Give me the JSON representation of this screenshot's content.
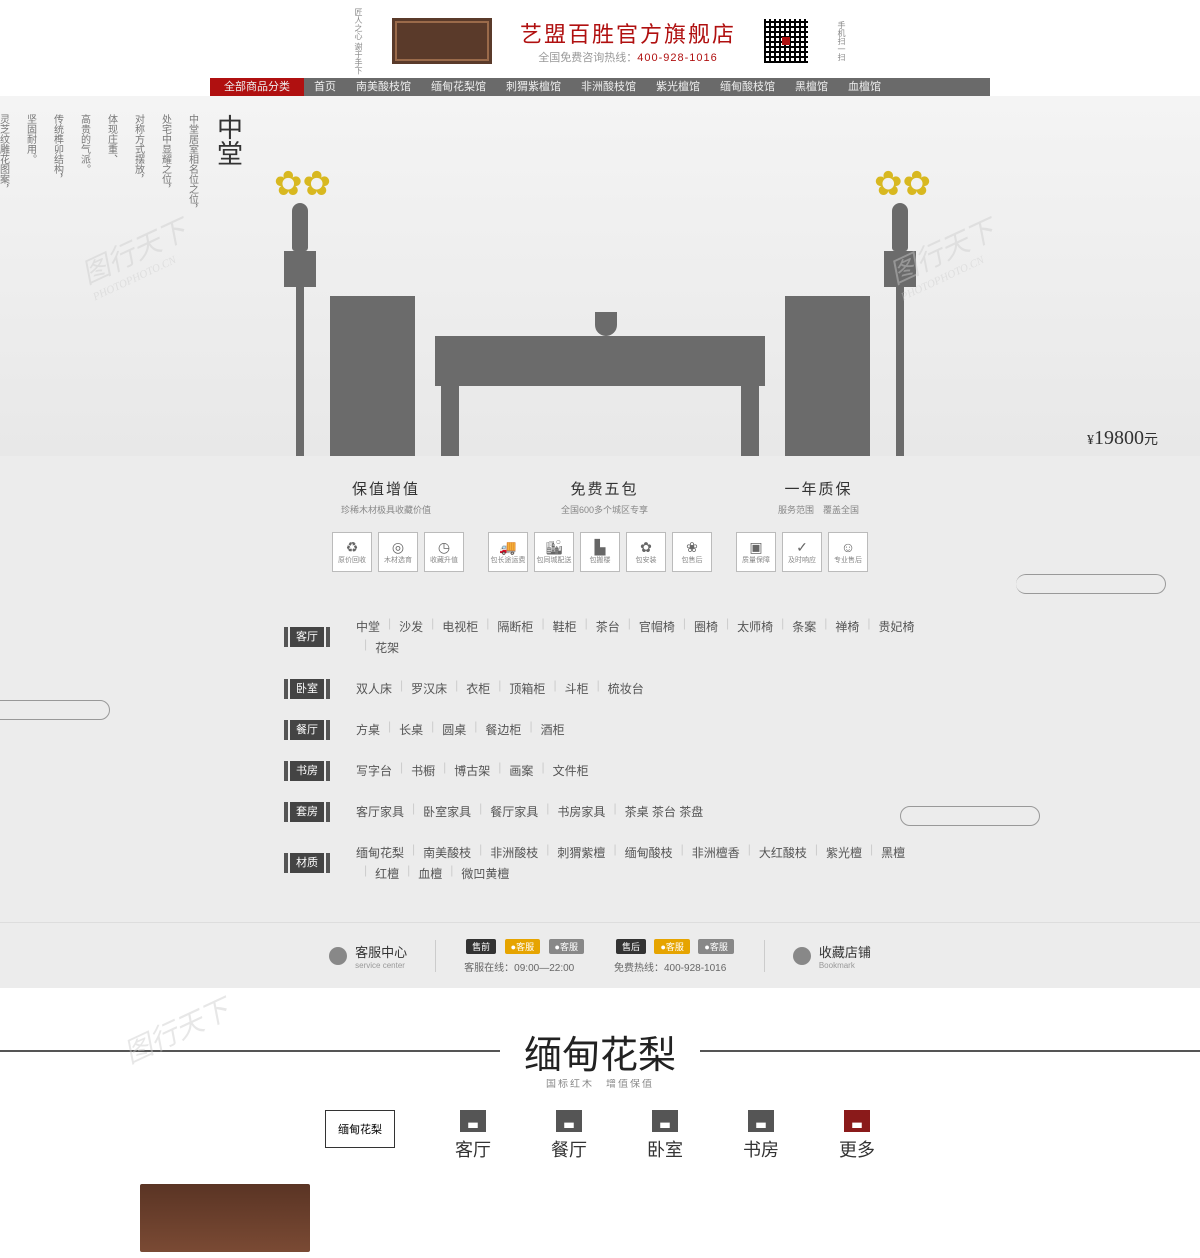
{
  "brand": {
    "title": "艺盟百胜官方旗舰店",
    "sub_prefix": "全国免费咨询热线：",
    "phone": "400-928-1016",
    "left_txt": "匠人之心\n谢于手下",
    "right_txt": "手机扫一扫"
  },
  "nav": [
    {
      "label": "全部商品分类",
      "active": true
    },
    {
      "label": "首页"
    },
    {
      "label": "南美酸枝馆"
    },
    {
      "label": "缅甸花梨馆"
    },
    {
      "label": "刺猬紫檀馆"
    },
    {
      "label": "非洲酸枝馆"
    },
    {
      "label": "紫光檀馆"
    },
    {
      "label": "缅甸酸枝馆"
    },
    {
      "label": "黑檀馆"
    },
    {
      "label": "血檀馆"
    }
  ],
  "hero": {
    "columns": [
      "渊释福寿如意的美好寓意。",
      "灵芝纹雕花图案，",
      "坚固耐用。",
      "传统榫卯结构，",
      "高贵的气派。",
      "体现庄重、",
      "对称方式摆放，",
      "处宅中显耀之位，",
      "中堂居室相名位之位，"
    ],
    "title": "中堂",
    "price": "19800",
    "currency": "¥",
    "unit": "元"
  },
  "features": [
    {
      "t": "保值增值",
      "s": "珍稀木材极具收藏价值"
    },
    {
      "t": "免费五包",
      "s": "全国600多个城区专享"
    },
    {
      "t": "一年质保",
      "s": "服务范围　覆盖全国"
    }
  ],
  "icon_groups": [
    [
      {
        "i": "♻",
        "t": "原价回收"
      },
      {
        "i": "◎",
        "t": "木材选育"
      },
      {
        "i": "◷",
        "t": "收藏升值"
      }
    ],
    [
      {
        "i": "🚚",
        "t": "包长途运费"
      },
      {
        "i": "🏙",
        "t": "包同城配送"
      },
      {
        "i": "▙",
        "t": "包搬楼"
      },
      {
        "i": "✿",
        "t": "包安装"
      },
      {
        "i": "❀",
        "t": "包售后"
      }
    ],
    [
      {
        "i": "▣",
        "t": "质量保障"
      },
      {
        "i": "✓",
        "t": "及时响应"
      },
      {
        "i": "☺",
        "t": "专业售后"
      }
    ]
  ],
  "categories": [
    {
      "label": "客厅",
      "items": [
        "中堂",
        "沙发",
        "电视柜",
        "隔断柜",
        "鞋柜",
        "茶台",
        "官帽椅",
        "圈椅",
        "太师椅",
        "条案",
        "禅椅",
        "贵妃椅",
        "花架"
      ]
    },
    {
      "label": "卧室",
      "items": [
        "双人床",
        "罗汉床",
        "衣柜",
        "顶箱柜",
        "斗柜",
        "梳妆台"
      ]
    },
    {
      "label": "餐厅",
      "items": [
        "方桌",
        "长桌",
        "圆桌",
        "餐边柜",
        "酒柜"
      ]
    },
    {
      "label": "书房",
      "items": [
        "写字台",
        "书橱",
        "博古架",
        "画案",
        "文件柜"
      ]
    },
    {
      "label": "套房",
      "items": [
        "客厅家具",
        "卧室家具",
        "餐厅家具",
        "书房家具",
        "茶桌 茶台 茶盘"
      ]
    },
    {
      "label": "材质",
      "items": [
        "缅甸花梨",
        "南美酸枝",
        "非洲酸枝",
        "刺猬紫檀",
        "缅甸酸枝",
        "非洲檀香",
        "大红酸枝",
        "紫光檀",
        "黑檀",
        "红檀",
        "血檀",
        "微凹黄檀"
      ]
    }
  ],
  "service": {
    "center_title": "客服中心",
    "center_sub": "service center",
    "pre": "售前",
    "post": "售后",
    "kf": "客服",
    "online_label": "客服在线：",
    "online_time": "09:00—22:00",
    "hotline_label": "免费热线：",
    "hotline": "400-928-1016",
    "bookmark": "收藏店铺",
    "bookmark_sub": "Bookmark"
  },
  "section": {
    "script": "缅甸花梨",
    "sub": "国标红木　增值保值",
    "btm_box": "缅甸花梨"
  },
  "btm_tabs": [
    {
      "t": "客厅",
      "bg": "#555"
    },
    {
      "t": "餐厅",
      "bg": "#555"
    },
    {
      "t": "卧室",
      "bg": "#555"
    },
    {
      "t": "书房",
      "bg": "#555"
    },
    {
      "t": "更多",
      "bg": "#8a1a1a",
      "more": true
    }
  ],
  "colors": {
    "accent": "#b01010",
    "nav": "#6a6a6a",
    "furniture": "#6b6b6b",
    "bg": "#ececec"
  }
}
